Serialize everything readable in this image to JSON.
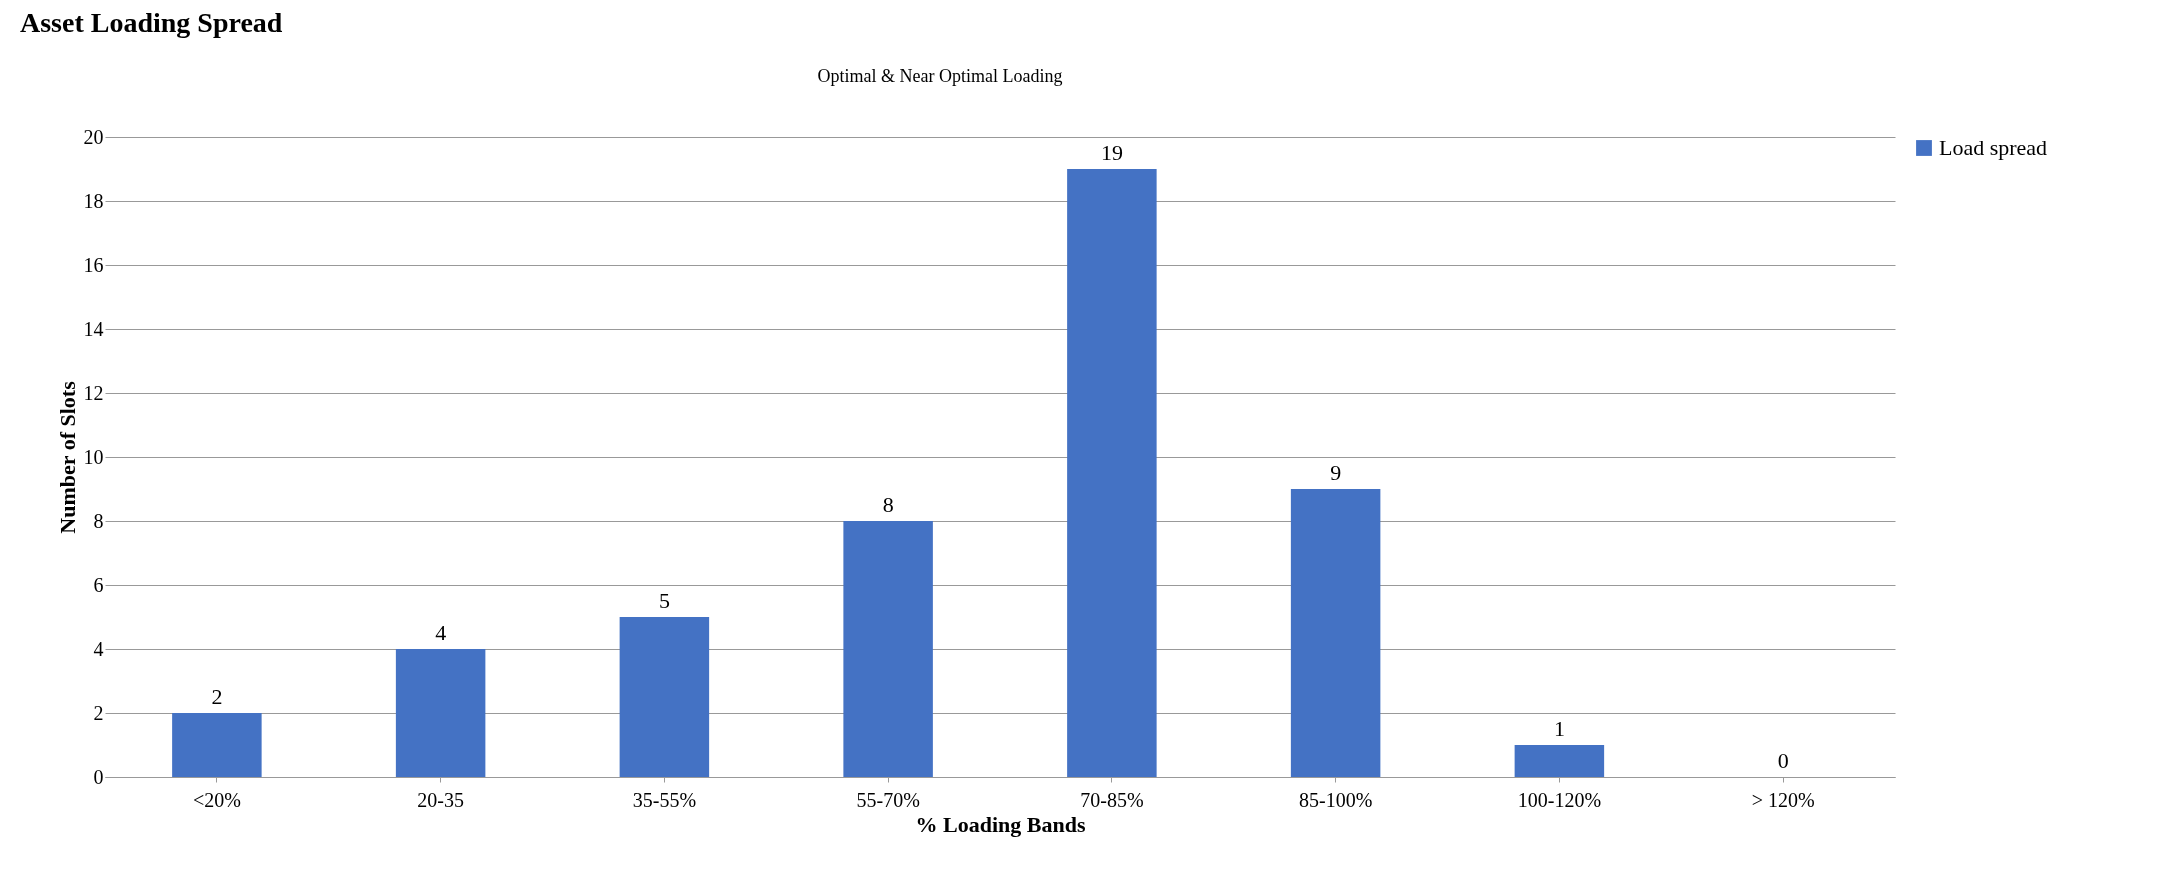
{
  "chart_data": {
    "type": "bar",
    "title": "Asset Loading Spread",
    "xlabel": "% Loading Bands",
    "ylabel": "Number of Slots",
    "categories": [
      "<20%",
      "20-35",
      "35-55%",
      "55-70%",
      "70-85%",
      "85-100%",
      "100-120%",
      "> 120%"
    ],
    "series": [
      {
        "name": "Load spread",
        "color": "#4472c4",
        "values": [
          2,
          4,
          5,
          8,
          19,
          9,
          1,
          0
        ]
      }
    ],
    "ylim": [
      0,
      20
    ],
    "yticks": [
      0,
      2,
      4,
      6,
      8,
      10,
      12,
      14,
      16,
      18,
      20
    ],
    "grid": "y",
    "legend": "right",
    "data_labels": true,
    "annotations": [
      "Optimal & Near Optimal Loading"
    ]
  }
}
